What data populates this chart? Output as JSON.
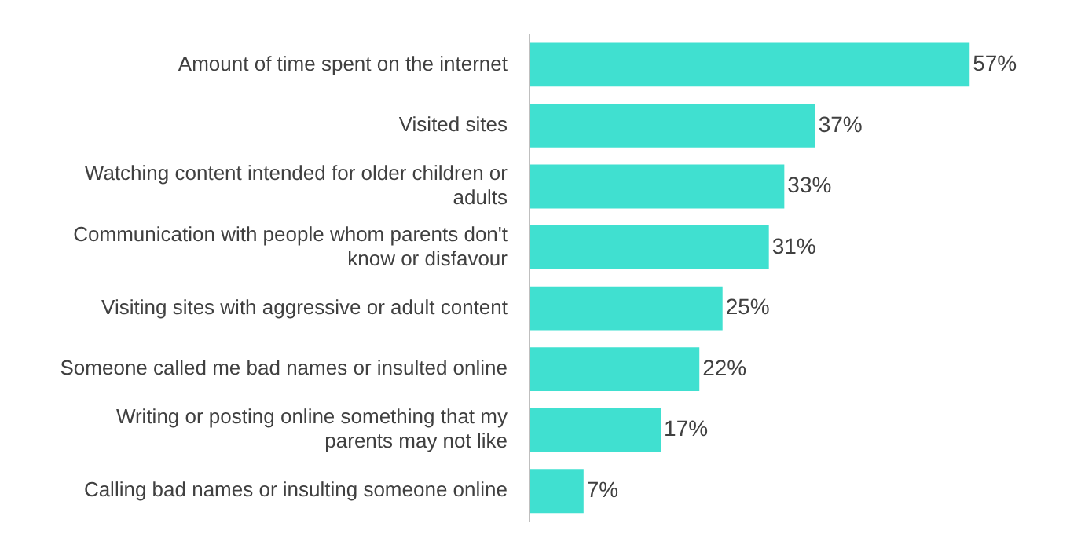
{
  "chart_data": {
    "type": "bar",
    "orientation": "horizontal",
    "categories": [
      "Amount of time spent on the internet",
      "Visited sites",
      "Watching content intended for older children or adults",
      "Communication with people whom parents don't know or disfavour",
      "Visiting sites with aggressive or adult content",
      "Someone called me bad names or insulted online",
      "Writing or posting online something that my parents may not like",
      "Calling bad names or insulting someone online"
    ],
    "values": [
      57,
      37,
      33,
      31,
      25,
      22,
      17,
      7
    ],
    "value_labels": [
      "57%",
      "37%",
      "33%",
      "31%",
      "25%",
      "22%",
      "17%",
      "7%"
    ],
    "color": "#40e0d0"
  }
}
